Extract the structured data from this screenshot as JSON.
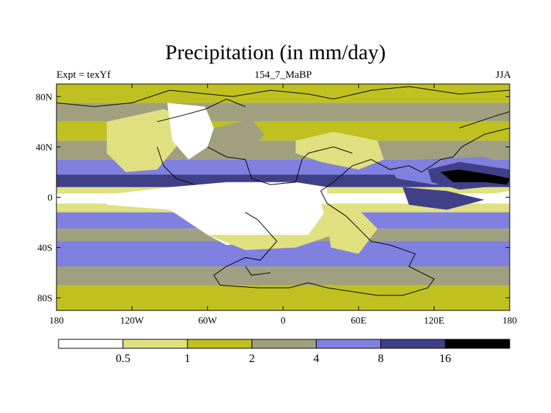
{
  "chart_data": {
    "type": "heatmap",
    "title": "Precipitation (in mm/day)",
    "subtitle_left": "Expt = texYf",
    "subtitle_center": "154_7_MaBP",
    "subtitle_right": "JJA",
    "x_ticks": [
      "180",
      "120W",
      "60W",
      "0",
      "60E",
      "120E",
      "180"
    ],
    "x_tick_values": [
      -180,
      -120,
      -60,
      0,
      60,
      120,
      180
    ],
    "y_ticks": [
      "80N",
      "40N",
      "0",
      "40S",
      "80S"
    ],
    "y_tick_values": [
      80,
      40,
      0,
      -40,
      -80
    ],
    "xlim": [
      -180,
      180
    ],
    "ylim": [
      -90,
      90
    ],
    "colorbar": {
      "levels": [
        "0.5",
        "1",
        "2",
        "4",
        "8",
        "16"
      ],
      "colors": [
        "#ffffff",
        "#e0e080",
        "#c0c020",
        "#a0a080",
        "#8080e0",
        "#404088",
        "#000000"
      ]
    },
    "bands": [
      {
        "lat_top": 90,
        "lat_bottom": 75,
        "level": 2
      },
      {
        "lat_top": 75,
        "lat_bottom": 60,
        "level": 3
      },
      {
        "lat_top": 60,
        "lat_bottom": 45,
        "level": 2
      },
      {
        "lat_top": 45,
        "lat_bottom": 30,
        "level": 3
      },
      {
        "lat_top": 30,
        "lat_bottom": 18,
        "level": 4
      },
      {
        "lat_top": 18,
        "lat_bottom": 8,
        "level": 5
      },
      {
        "lat_top": 8,
        "lat_bottom": 3,
        "level": 1
      },
      {
        "lat_top": 3,
        "lat_bottom": -5,
        "level": 0
      },
      {
        "lat_top": -5,
        "lat_bottom": -12,
        "level": 1
      },
      {
        "lat_top": -12,
        "lat_bottom": -25,
        "level": 4
      },
      {
        "lat_top": -25,
        "lat_bottom": -35,
        "level": 3
      },
      {
        "lat_top": -35,
        "lat_bottom": -55,
        "level": 4
      },
      {
        "lat_top": -55,
        "lat_bottom": -70,
        "level": 3
      },
      {
        "lat_top": -70,
        "lat_bottom": -90,
        "level": 2
      }
    ],
    "regions": [
      {
        "name": "north-america-west-dry",
        "level": 0,
        "points": [
          [
            -130,
            55
          ],
          [
            -115,
            62
          ],
          [
            -100,
            60
          ],
          [
            -95,
            45
          ],
          [
            -105,
            28
          ],
          [
            -120,
            25
          ],
          [
            -130,
            35
          ]
        ]
      },
      {
        "name": "north-america-margin",
        "level": 1,
        "points": [
          [
            -140,
            60
          ],
          [
            -95,
            70
          ],
          [
            -80,
            65
          ],
          [
            -85,
            40
          ],
          [
            -100,
            22
          ],
          [
            -125,
            20
          ],
          [
            -140,
            35
          ]
        ]
      },
      {
        "name": "north-america-core-dry",
        "level": 0,
        "points": [
          [
            -92,
            75
          ],
          [
            -62,
            72
          ],
          [
            -55,
            55
          ],
          [
            -60,
            40
          ],
          [
            -75,
            30
          ],
          [
            -88,
            45
          ]
        ]
      },
      {
        "name": "north-atlantic-wet",
        "level": 3,
        "points": [
          [
            -55,
            55
          ],
          [
            -25,
            62
          ],
          [
            -15,
            50
          ],
          [
            -25,
            38
          ],
          [
            -50,
            35
          ],
          [
            -58,
            45
          ]
        ]
      },
      {
        "name": "south-america-africa-dry",
        "level": 0,
        "points": [
          [
            -140,
            2
          ],
          [
            -90,
            8
          ],
          [
            -45,
            12
          ],
          [
            10,
            12
          ],
          [
            35,
            8
          ],
          [
            35,
            -10
          ],
          [
            20,
            -30
          ],
          [
            -10,
            -35
          ],
          [
            -45,
            -38
          ],
          [
            -60,
            -30
          ],
          [
            -90,
            -10
          ],
          [
            -140,
            -6
          ]
        ]
      },
      {
        "name": "south-africa-margin",
        "level": 1,
        "points": [
          [
            -60,
            -30
          ],
          [
            -30,
            -42
          ],
          [
            10,
            -40
          ],
          [
            40,
            -30
          ],
          [
            50,
            -15
          ],
          [
            38,
            -5
          ],
          [
            20,
            -30
          ]
        ]
      },
      {
        "name": "asia-dry",
        "level": 0,
        "points": [
          [
            48,
            42
          ],
          [
            55,
            45
          ],
          [
            65,
            35
          ],
          [
            62,
            28
          ],
          [
            50,
            30
          ]
        ]
      },
      {
        "name": "asia-margin",
        "level": 1,
        "points": [
          [
            10,
            45
          ],
          [
            40,
            52
          ],
          [
            75,
            45
          ],
          [
            80,
            30
          ],
          [
            60,
            22
          ],
          [
            30,
            28
          ],
          [
            10,
            35
          ]
        ]
      },
      {
        "name": "west-pacific-wet",
        "level": 4,
        "points": [
          [
            85,
            25
          ],
          [
            110,
            30
          ],
          [
            160,
            32
          ],
          [
            180,
            25
          ],
          [
            180,
            15
          ],
          [
            120,
            10
          ],
          [
            90,
            15
          ]
        ]
      },
      {
        "name": "west-pacific-heavy",
        "level": 5,
        "points": [
          [
            115,
            22
          ],
          [
            140,
            28
          ],
          [
            180,
            22
          ],
          [
            180,
            10
          ],
          [
            140,
            6
          ],
          [
            118,
            12
          ]
        ]
      },
      {
        "name": "west-pacific-extreme",
        "level": 6,
        "points": [
          [
            125,
            20
          ],
          [
            140,
            22
          ],
          [
            165,
            18
          ],
          [
            180,
            15
          ],
          [
            178,
            10
          ],
          [
            160,
            12
          ],
          [
            135,
            12
          ]
        ]
      },
      {
        "name": "indian-ocean-wet",
        "level": 5,
        "points": [
          [
            95,
            8
          ],
          [
            130,
            5
          ],
          [
            160,
            -2
          ],
          [
            130,
            -10
          ],
          [
            100,
            -6
          ]
        ]
      },
      {
        "name": "south-indian-margin",
        "level": 1,
        "points": [
          [
            30,
            -5
          ],
          [
            60,
            -10
          ],
          [
            75,
            -25
          ],
          [
            60,
            -45
          ],
          [
            38,
            -40
          ],
          [
            35,
            -20
          ]
        ]
      },
      {
        "name": "east-pacific-dry",
        "level": 0,
        "points": [
          [
            162,
            2
          ],
          [
            180,
            5
          ],
          [
            180,
            -4
          ],
          [
            165,
            -3
          ]
        ]
      }
    ],
    "outline": [
      [
        [
          -30,
          -12
        ],
        [
          -20,
          -18
        ],
        [
          -5,
          -35
        ],
        [
          -18,
          -50
        ],
        [
          -30,
          -48
        ],
        [
          -45,
          -55
        ],
        [
          -55,
          -62
        ],
        [
          -50,
          -70
        ],
        [
          -20,
          -72
        ],
        [
          5,
          -72
        ],
        [
          20,
          -68
        ],
        [
          35,
          -72
        ],
        [
          55,
          -75
        ],
        [
          75,
          -78
        ],
        [
          95,
          -78
        ],
        [
          115,
          -72
        ],
        [
          120,
          -65
        ],
        [
          110,
          -60
        ],
        [
          100,
          -55
        ],
        [
          105,
          -45
        ],
        [
          85,
          -38
        ],
        [
          70,
          -35
        ],
        [
          60,
          -25
        ],
        [
          50,
          -15
        ],
        [
          35,
          -5
        ],
        [
          30,
          5
        ],
        [
          40,
          12
        ],
        [
          55,
          25
        ],
        [
          70,
          30
        ],
        [
          85,
          22
        ],
        [
          100,
          25
        ],
        [
          110,
          20
        ],
        [
          118,
          25
        ],
        [
          125,
          30
        ],
        [
          135,
          32
        ],
        [
          142,
          40
        ],
        [
          160,
          50
        ],
        [
          180,
          55
        ]
      ],
      [
        [
          -180,
          75
        ],
        [
          -150,
          72
        ],
        [
          -120,
          75
        ],
        [
          -90,
          85
        ],
        [
          -60,
          82
        ],
        [
          -40,
          80
        ],
        [
          -10,
          85
        ],
        [
          20,
          82
        ],
        [
          40,
          78
        ],
        [
          70,
          85
        ],
        [
          100,
          88
        ],
        [
          140,
          82
        ],
        [
          180,
          85
        ]
      ],
      [
        [
          -100,
          60
        ],
        [
          -80,
          65
        ],
        [
          -62,
          70
        ],
        [
          -45,
          78
        ],
        [
          -30,
          72
        ]
      ],
      [
        [
          -60,
          40
        ],
        [
          -45,
          32
        ],
        [
          -30,
          30
        ],
        [
          -25,
          15
        ],
        [
          -10,
          10
        ],
        [
          10,
          12
        ],
        [
          15,
          30
        ],
        [
          20,
          35
        ],
        [
          40,
          40
        ],
        [
          55,
          35
        ]
      ],
      [
        [
          -100,
          40
        ],
        [
          -95,
          25
        ],
        [
          -85,
          15
        ],
        [
          -70,
          10
        ]
      ],
      [
        [
          -30,
          -55
        ],
        [
          -25,
          -62
        ],
        [
          -10,
          -60
        ]
      ],
      [
        [
          140,
          55
        ],
        [
          155,
          60
        ],
        [
          170,
          65
        ],
        [
          180,
          68
        ]
      ]
    ]
  }
}
